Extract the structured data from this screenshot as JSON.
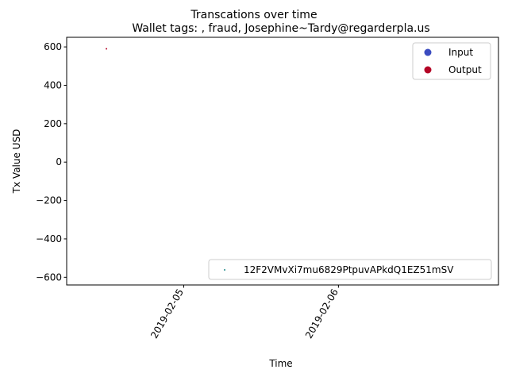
{
  "chart_data": {
    "type": "scatter",
    "suptitle": "Transcations over time",
    "title": "Wallet tags: , fraud, Josephine~Tardy@regarderpla.us",
    "xlabel": "Time",
    "ylabel": "Tx Value USD",
    "xlim": [
      "2019-02-04 05:50",
      "2019-02-07 00:50"
    ],
    "ylim": [
      -640,
      650
    ],
    "x_ticks": [
      "2019-02-05",
      "2019-02-06"
    ],
    "y_ticks": [
      600,
      400,
      200,
      0,
      -200,
      -400,
      -600
    ],
    "grid": false,
    "legend_top": {
      "placement": "upper right",
      "entries": [
        {
          "label": "Input",
          "color": "#3b4cc0"
        },
        {
          "label": "Output",
          "color": "#b40426"
        }
      ]
    },
    "legend_bottom": {
      "placement": "lower right",
      "entries": [
        {
          "label": "12F2VMvXi7mu6829PtpuvAPkdQ1EZ51mSV",
          "color": "#1f8a8a"
        }
      ]
    },
    "points": [
      {
        "x": "2019-02-04 12:00",
        "y": 590,
        "kind": "Output",
        "color": "#b40426"
      }
    ]
  }
}
